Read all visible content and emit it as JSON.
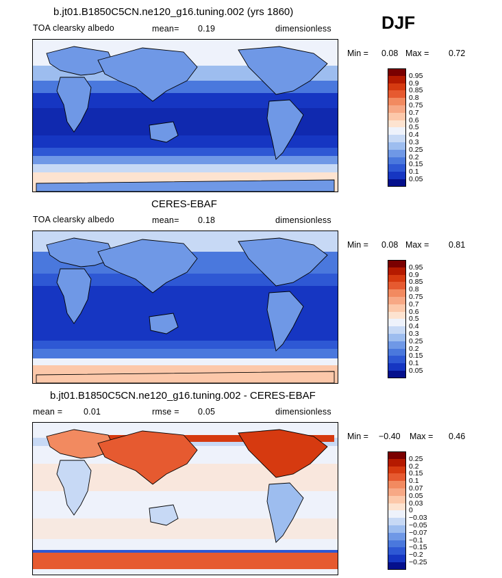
{
  "season": "DJF",
  "panels": [
    {
      "title": "b.jt01.B1850C5CN.ne120_g16.tuning.002 (yrs 1860)",
      "left_label": "TOA clearsky albedo",
      "center_label": "mean=",
      "center_value": "0.19",
      "right_label": "dimensionless",
      "min_label": "Min =",
      "min_value": "0.08",
      "max_label": "Max =",
      "max_value": "0.72",
      "levels": [
        "0.95",
        "0.9",
        "0.85",
        "0.8",
        "0.75",
        "0.7",
        "0.6",
        "0.5",
        "0.4",
        "0.3",
        "0.25",
        "0.2",
        "0.15",
        "0.1",
        "0.05"
      ],
      "colors": [
        "#7a0000",
        "#b51a00",
        "#d63a10",
        "#e65a30",
        "#f28a60",
        "#f7a885",
        "#fcc8aa",
        "#fde3d0",
        "#eef2fb",
        "#c7d9f5",
        "#9dbdef",
        "#6f98e6",
        "#4a78dd",
        "#2e58d4",
        "#1636c2",
        "#05108c"
      ]
    },
    {
      "title": "CERES-EBAF",
      "left_label": "TOA clearsky albedo",
      "center_label": "mean=",
      "center_value": "0.18",
      "right_label": "dimensionless",
      "min_label": "Min =",
      "min_value": "0.08",
      "max_label": "Max =",
      "max_value": "0.81",
      "levels": [
        "0.95",
        "0.9",
        "0.85",
        "0.8",
        "0.75",
        "0.7",
        "0.6",
        "0.5",
        "0.4",
        "0.3",
        "0.25",
        "0.2",
        "0.15",
        "0.1",
        "0.05"
      ],
      "colors": [
        "#7a0000",
        "#b51a00",
        "#d63a10",
        "#e65a30",
        "#f28a60",
        "#f7a885",
        "#fcc8aa",
        "#fde3d0",
        "#eef2fb",
        "#c7d9f5",
        "#9dbdef",
        "#6f98e6",
        "#4a78dd",
        "#2e58d4",
        "#1636c2",
        "#05108c"
      ]
    },
    {
      "title": "b.jt01.B1850C5CN.ne120_g16.tuning.002 - CERES-EBAF",
      "left_label": "mean =",
      "left_value": "0.01",
      "center_label": "rmse =",
      "center_value": "0.05",
      "right_label": "dimensionless",
      "min_label": "Min =",
      "min_value": "−0.40",
      "max_label": "Max =",
      "max_value": "0.46",
      "levels": [
        "0.25",
        "0.2",
        "0.15",
        "0.1",
        "0.07",
        "0.05",
        "0.03",
        "0",
        "−0.03",
        "−0.05",
        "−0.07",
        "−0.1",
        "−0.15",
        "−0.2",
        "−0.25"
      ],
      "colors": [
        "#7a0000",
        "#b51a00",
        "#d63a10",
        "#e65a30",
        "#f28a60",
        "#f7a885",
        "#fcc8aa",
        "#fde3d0",
        "#eef2fb",
        "#c7d9f5",
        "#9dbdef",
        "#6f98e6",
        "#4a78dd",
        "#2e58d4",
        "#1636c2",
        "#05108c"
      ]
    }
  ]
}
